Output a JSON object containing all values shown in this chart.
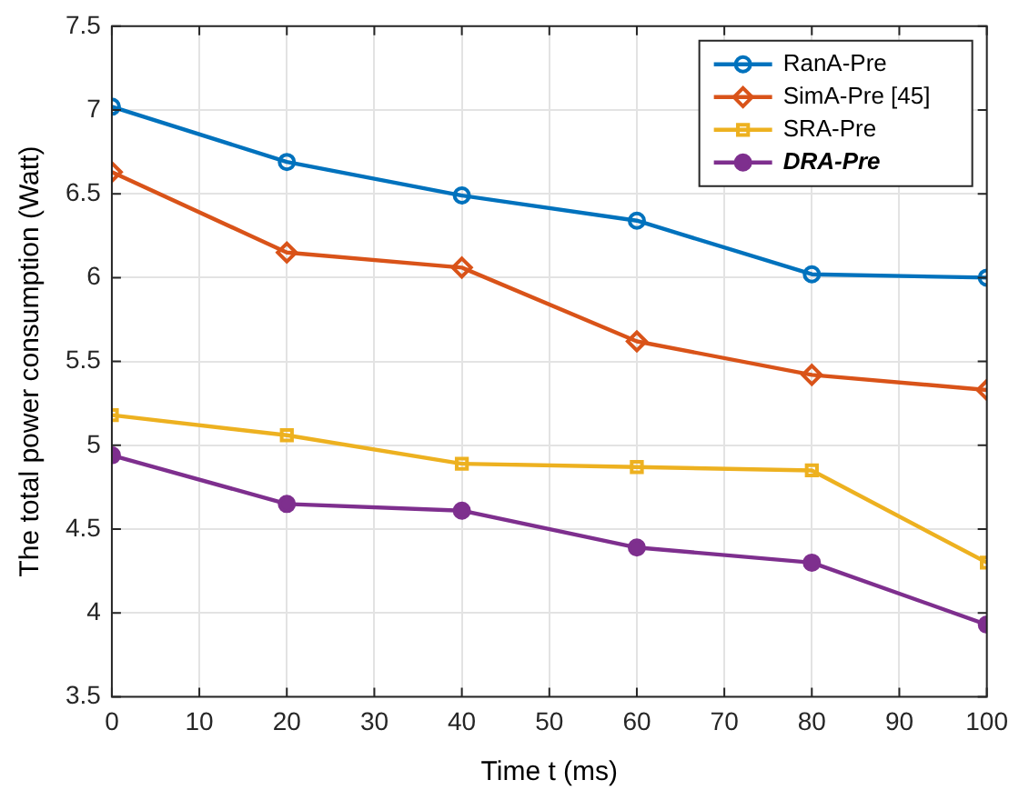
{
  "chart_data": {
    "type": "line",
    "xlabel": "Time t (ms)",
    "ylabel": "The total power consumption (Watt)",
    "x": [
      0,
      20,
      40,
      60,
      80,
      100
    ],
    "series": [
      {
        "name": "RanA-Pre",
        "color": "#0072bd",
        "marker": "circle",
        "values": [
          7.02,
          6.69,
          6.49,
          6.34,
          6.02,
          6.0
        ]
      },
      {
        "name": "SimA-Pre [45]",
        "color": "#d95319",
        "marker": "diamond",
        "values": [
          6.63,
          6.15,
          6.06,
          5.62,
          5.42,
          5.33
        ]
      },
      {
        "name": "SRA-Pre",
        "color": "#edb120",
        "marker": "square",
        "values": [
          5.18,
          5.06,
          4.89,
          4.87,
          4.85,
          4.3
        ]
      },
      {
        "name": "DRA-Pre",
        "color": "#7e2f8e",
        "marker": "circle",
        "values": [
          4.94,
          4.65,
          4.61,
          4.39,
          4.3,
          3.93
        ]
      }
    ],
    "xlim": [
      0,
      100
    ],
    "xticks": [
      0,
      10,
      20,
      30,
      40,
      50,
      60,
      70,
      80,
      90,
      100
    ],
    "ylim": [
      3.5,
      7.5
    ],
    "yticks": [
      3.5,
      4,
      4.5,
      5,
      5.5,
      6,
      6.5,
      7,
      7.5
    ],
    "grid": true,
    "legend": "top right",
    "line_style": "solid"
  }
}
